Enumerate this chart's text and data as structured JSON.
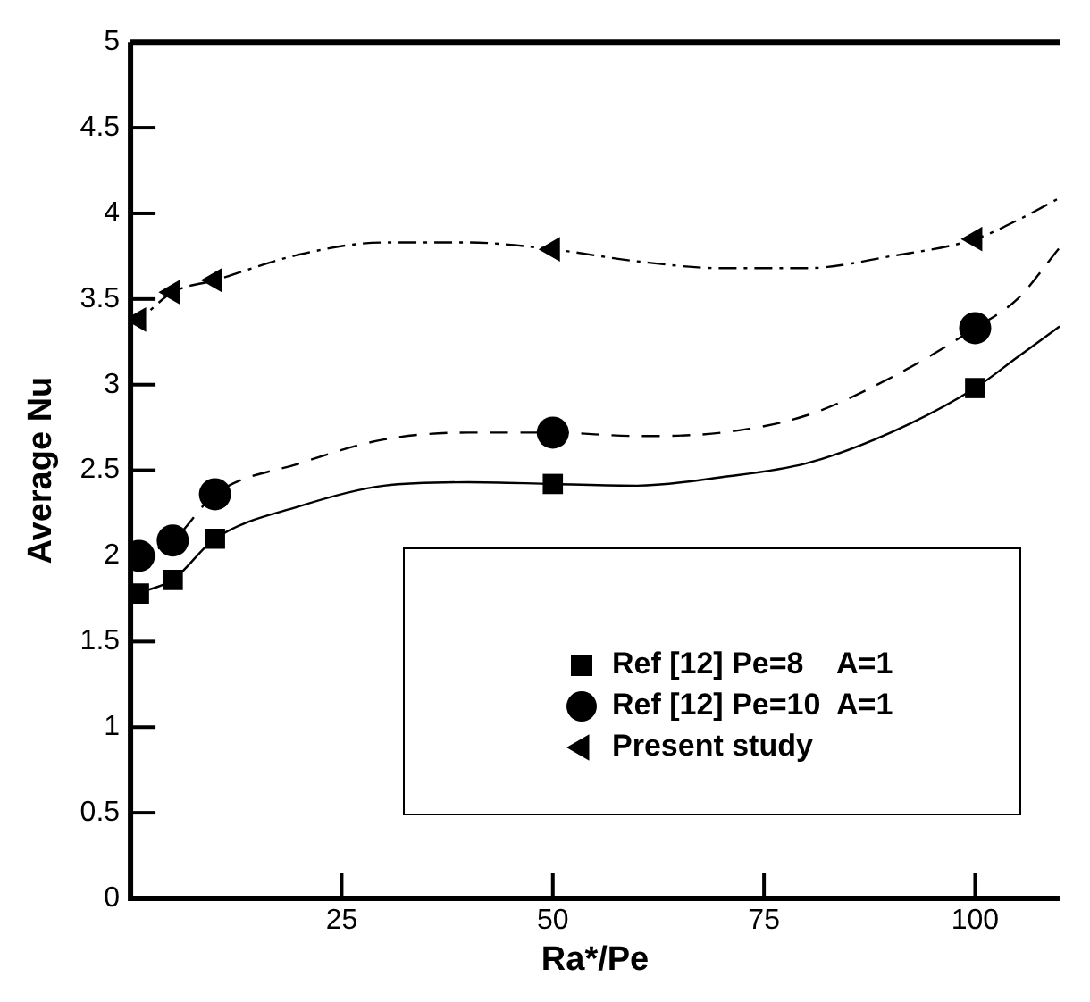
{
  "chart_data": {
    "type": "scatter",
    "xlabel": "Ra*/Pe",
    "ylabel": "Average Nu",
    "xlim": [
      0,
      110
    ],
    "xticks": [
      25,
      50,
      75,
      100
    ],
    "ylim": [
      0,
      5
    ],
    "yticks": [
      0,
      0.5,
      1,
      1.5,
      2,
      2.5,
      3,
      3.5,
      4,
      4.5,
      5
    ],
    "grid": false,
    "legend": "bottom right",
    "series": [
      {
        "name": "Ref [12] Pe=8    A=1",
        "color": "#000000",
        "marker": "square",
        "line_style": "solid",
        "x": [
          1,
          5,
          10,
          50,
          100
        ],
        "values": [
          1.78,
          1.86,
          2.1,
          2.42,
          2.98
        ]
      },
      {
        "name": "Ref [12] Pe=10  A=1",
        "color": "#000000",
        "marker": "circle",
        "line_style": "dashed",
        "x": [
          1,
          5,
          10,
          50,
          100
        ],
        "values": [
          2.0,
          2.09,
          2.36,
          2.72,
          3.33
        ]
      },
      {
        "name": "Present study",
        "color": "#000000",
        "marker": "triangle",
        "line_style": "dashdot",
        "x": [
          1,
          5,
          10,
          50,
          100
        ],
        "values": [
          3.38,
          3.54,
          3.61,
          3.79,
          3.85
        ]
      },
      {
        "type": "line",
        "color": "#000000",
        "marker": "none",
        "line_style": "solid",
        "x": [
          0,
          1,
          5,
          10,
          20,
          30,
          40,
          50,
          60,
          70,
          80,
          90,
          100,
          105,
          110
        ],
        "values": [
          1.75,
          1.78,
          1.86,
          2.1,
          2.29,
          2.41,
          2.43,
          2.42,
          2.41,
          2.46,
          2.54,
          2.72,
          2.98,
          3.16,
          3.34
        ]
      },
      {
        "type": "line",
        "color": "#000000",
        "marker": "none",
        "line_style": "dashed",
        "x": [
          0,
          1,
          5,
          10,
          20,
          30,
          40,
          50,
          60,
          70,
          80,
          90,
          100,
          105,
          110
        ],
        "values": [
          1.97,
          2.0,
          2.09,
          2.36,
          2.54,
          2.68,
          2.72,
          2.72,
          2.7,
          2.72,
          2.82,
          3.04,
          3.33,
          3.5,
          3.8
        ]
      },
      {
        "type": "line",
        "color": "#000000",
        "marker": "none",
        "line_style": "dashdot",
        "x": [
          0,
          1,
          5,
          10,
          20,
          30,
          40,
          50,
          60,
          70,
          80,
          90,
          100,
          105,
          110
        ],
        "values": [
          3.35,
          3.38,
          3.54,
          3.61,
          3.76,
          3.83,
          3.83,
          3.79,
          3.72,
          3.68,
          3.68,
          3.75,
          3.85,
          3.96,
          4.09
        ]
      }
    ]
  }
}
